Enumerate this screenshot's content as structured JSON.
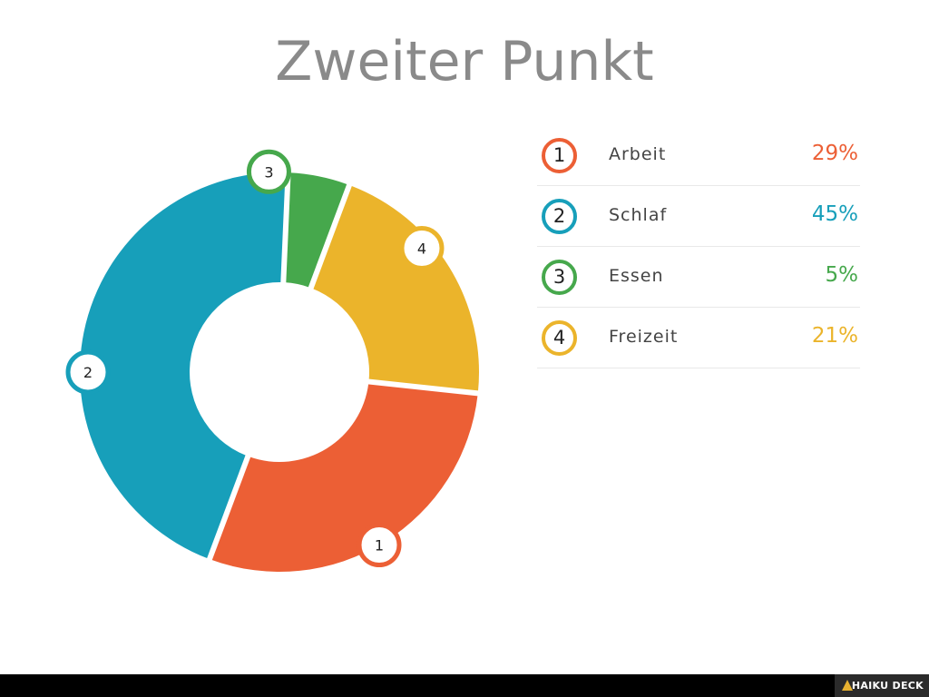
{
  "slide": {
    "title": "Zweiter Punkt"
  },
  "chart_data": {
    "type": "pie",
    "categories": [
      "Arbeit",
      "Schlaf",
      "Essen",
      "Freizeit"
    ],
    "markers": [
      "1",
      "2",
      "3",
      "4"
    ],
    "values": [
      29,
      45,
      5,
      21
    ],
    "value_labels": [
      "29%",
      "45%",
      "5%",
      "21%"
    ],
    "colors": [
      "#ec5f35",
      "#179fba",
      "#46a84c",
      "#ebb42b"
    ],
    "donut": true
  },
  "legend": {
    "items": [
      {
        "num": "1",
        "label": "Arbeit",
        "value": "29%"
      },
      {
        "num": "2",
        "label": "Schlaf",
        "value": "45%"
      },
      {
        "num": "3",
        "label": "Essen",
        "value": "5%"
      },
      {
        "num": "4",
        "label": "Freizeit",
        "value": "21%"
      }
    ]
  },
  "footer": {
    "brand": "HAIKU DECK",
    "brand_icon": "haiku-deck-logo-icon"
  }
}
